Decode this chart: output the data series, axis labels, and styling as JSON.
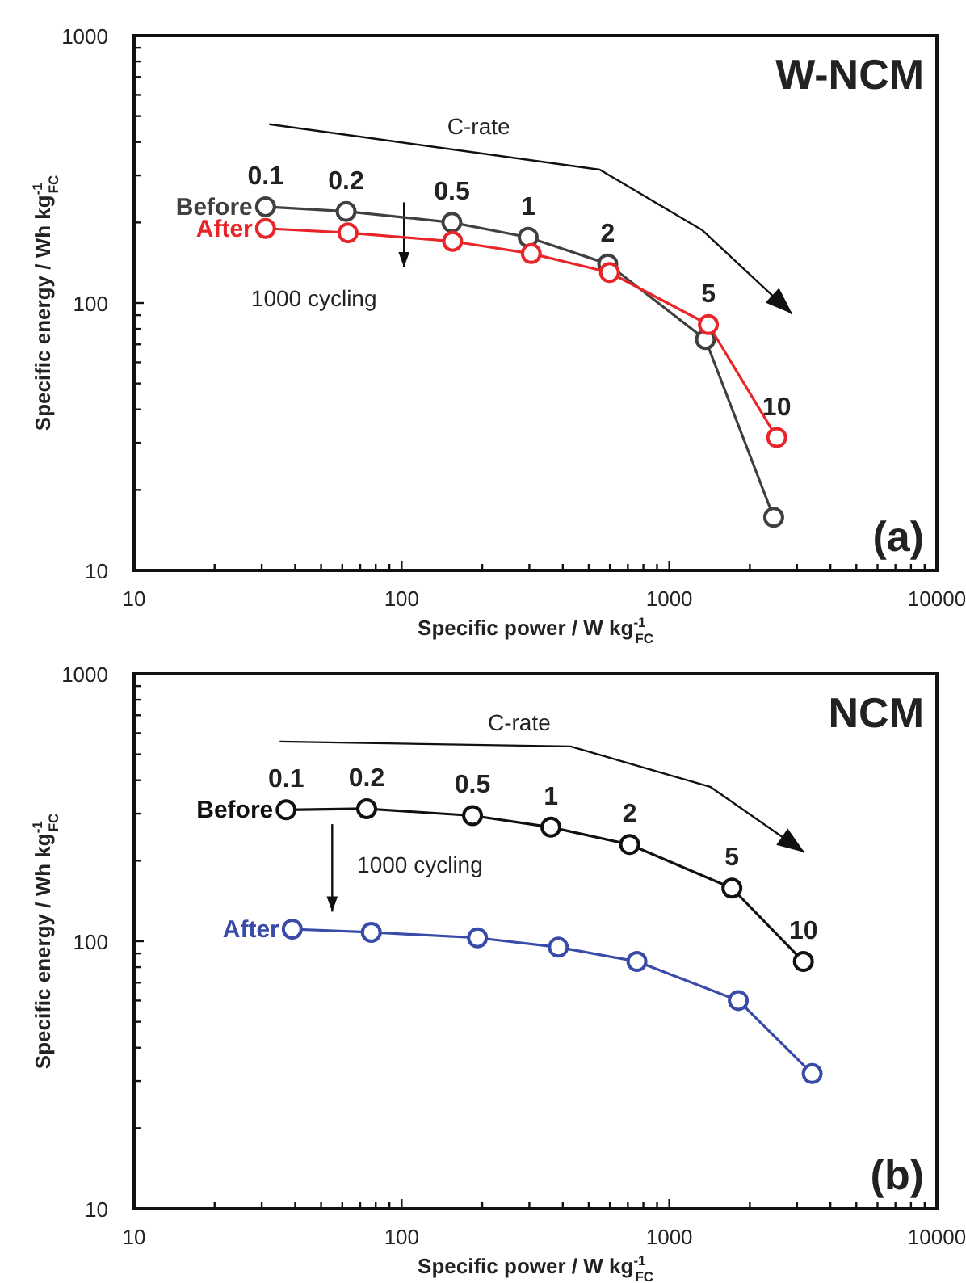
{
  "chart_data": [
    {
      "type": "line",
      "title": "W-NCM",
      "subtitle": "(a)",
      "xlabel": "Specific power / W kg$^{-1}$$_{FC}$",
      "ylabel": "Specific energy / Wh kg$^{-1}$$_{FC}$",
      "log": "xy",
      "xlim": [
        10,
        10000
      ],
      "ylim": [
        10,
        1000
      ],
      "xticks": [
        10,
        {
          "value": 20,
          "label": null
        },
        {
          "value": 30,
          "label": null
        },
        {
          "value": 40,
          "label": null
        },
        {
          "value": 50,
          "label": null
        },
        {
          "value": 60,
          "label": null
        },
        {
          "value": 70,
          "label": null
        },
        {
          "value": 80,
          "label": null
        },
        {
          "value": 90,
          "label": null
        },
        100,
        {
          "value": 200,
          "label": null
        },
        {
          "value": 300,
          "label": null
        },
        {
          "value": 400,
          "label": null
        },
        {
          "value": 500,
          "label": null
        },
        {
          "value": 600,
          "label": null
        },
        {
          "value": 700,
          "label": null
        },
        {
          "value": 800,
          "label": null
        },
        {
          "value": 900,
          "label": null
        },
        1000,
        {
          "value": 2000,
          "label": null
        },
        {
          "value": 3000,
          "label": null
        },
        {
          "value": 4000,
          "label": null
        },
        {
          "value": 5000,
          "label": null
        },
        {
          "value": 6000,
          "label": null
        },
        {
          "value": 7000,
          "label": null
        },
        {
          "value": 8000,
          "label": null
        },
        {
          "value": 9000,
          "label": null
        },
        10000
      ],
      "yticks": [
        10,
        {
          "value": 20,
          "label": null
        },
        {
          "value": 30,
          "label": null
        },
        {
          "value": 40,
          "label": null
        },
        {
          "value": 50,
          "label": null
        },
        {
          "value": 60,
          "label": null
        },
        {
          "value": 70,
          "label": null
        },
        {
          "value": 80,
          "label": null
        },
        {
          "value": 90,
          "label": null
        },
        100,
        {
          "value": 200,
          "label": null
        },
        {
          "value": 300,
          "label": null
        },
        {
          "value": 400,
          "label": null
        },
        {
          "value": 500,
          "label": null
        },
        {
          "value": 600,
          "label": null
        },
        {
          "value": 700,
          "label": null
        },
        {
          "value": 800,
          "label": null
        },
        {
          "value": 900,
          "label": null
        },
        1000
      ],
      "grid": false,
      "legend": false,
      "marker": "circle",
      "line_style": "solid",
      "series": [
        {
          "name": "Before",
          "color": "#404040",
          "x": [
            31,
            62,
            154,
            297,
            589,
            1365,
            2455
          ],
          "values": [
            229,
            220,
            200,
            176,
            140,
            73,
            15.8
          ]
        },
        {
          "name": "After",
          "color": "#e8262a",
          "x": [
            31,
            63,
            155,
            305,
            598,
            1400,
            2520
          ],
          "values": [
            190,
            183,
            170,
            153,
            130,
            83,
            31.4
          ]
        }
      ],
      "annotations": [
        {
          "text": "0.1",
          "x": 31,
          "y": 229
        },
        {
          "text": "0.2",
          "x": 62,
          "y": 220
        },
        {
          "text": "0.5",
          "x": 154,
          "y": 200
        },
        {
          "text": "1",
          "x": 297,
          "y": 176
        },
        {
          "text": "2",
          "x": 589,
          "y": 140
        },
        {
          "text": "5",
          "x": 1400,
          "y": 83
        },
        {
          "text": "10",
          "x": 2520,
          "y": 31.4
        },
        "C-rate",
        "1000 cycling"
      ]
    },
    {
      "type": "line",
      "title": "NCM",
      "subtitle": "(b)",
      "xlabel": "Specific power / W kg$^{-1}$$_{FC}$",
      "ylabel": "Specific energy / Wh kg$^{-1}$$_{FC}$",
      "log": "xy",
      "xlim": [
        10,
        10000
      ],
      "ylim": [
        10,
        1000
      ],
      "xticks": [
        10,
        {
          "value": 20,
          "label": null
        },
        {
          "value": 30,
          "label": null
        },
        {
          "value": 40,
          "label": null
        },
        {
          "value": 50,
          "label": null
        },
        {
          "value": 60,
          "label": null
        },
        {
          "value": 70,
          "label": null
        },
        {
          "value": 80,
          "label": null
        },
        {
          "value": 90,
          "label": null
        },
        100,
        {
          "value": 200,
          "label": null
        },
        {
          "value": 300,
          "label": null
        },
        {
          "value": 400,
          "label": null
        },
        {
          "value": 500,
          "label": null
        },
        {
          "value": 600,
          "label": null
        },
        {
          "value": 700,
          "label": null
        },
        {
          "value": 800,
          "label": null
        },
        {
          "value": 900,
          "label": null
        },
        1000,
        {
          "value": 2000,
          "label": null
        },
        {
          "value": 3000,
          "label": null
        },
        {
          "value": 4000,
          "label": null
        },
        {
          "value": 5000,
          "label": null
        },
        {
          "value": 6000,
          "label": null
        },
        {
          "value": 7000,
          "label": null
        },
        {
          "value": 8000,
          "label": null
        },
        {
          "value": 9000,
          "label": null
        },
        10000
      ],
      "yticks": [
        10,
        {
          "value": 20,
          "label": null
        },
        {
          "value": 30,
          "label": null
        },
        {
          "value": 40,
          "label": null
        },
        {
          "value": 50,
          "label": null
        },
        {
          "value": 60,
          "label": null
        },
        {
          "value": 70,
          "label": null
        },
        {
          "value": 80,
          "label": null
        },
        {
          "value": 90,
          "label": null
        },
        100,
        {
          "value": 200,
          "label": null
        },
        {
          "value": 300,
          "label": null
        },
        {
          "value": 400,
          "label": null
        },
        {
          "value": 500,
          "label": null
        },
        {
          "value": 600,
          "label": null
        },
        {
          "value": 700,
          "label": null
        },
        {
          "value": 800,
          "label": null
        },
        {
          "value": 900,
          "label": null
        },
        1000
      ],
      "grid": false,
      "legend": false,
      "marker": "circle",
      "line_style": "solid",
      "series": [
        {
          "name": "Before",
          "color": "#111111",
          "x": [
            37,
            74,
            184,
            361,
            711,
            1714,
            3170
          ],
          "values": [
            310,
            313,
            295,
            267,
            230,
            158,
            84
          ]
        },
        {
          "name": "After",
          "color": "#3a4aa8",
          "x": [
            39,
            77,
            192,
            385,
            757,
            1811,
            3420
          ],
          "values": [
            111,
            108,
            103,
            95,
            84,
            60,
            32
          ]
        }
      ],
      "annotations": [
        {
          "text": "0.1",
          "x": 37,
          "y": 310
        },
        {
          "text": "0.2",
          "x": 74,
          "y": 313
        },
        {
          "text": "0.5",
          "x": 184,
          "y": 295
        },
        {
          "text": "1",
          "x": 361,
          "y": 267
        },
        {
          "text": "2",
          "x": 711,
          "y": 230
        },
        {
          "text": "5",
          "x": 1714,
          "y": 158
        },
        {
          "text": "10",
          "x": 3170,
          "y": 84
        },
        "C-rate",
        "1000 cycling"
      ]
    }
  ]
}
